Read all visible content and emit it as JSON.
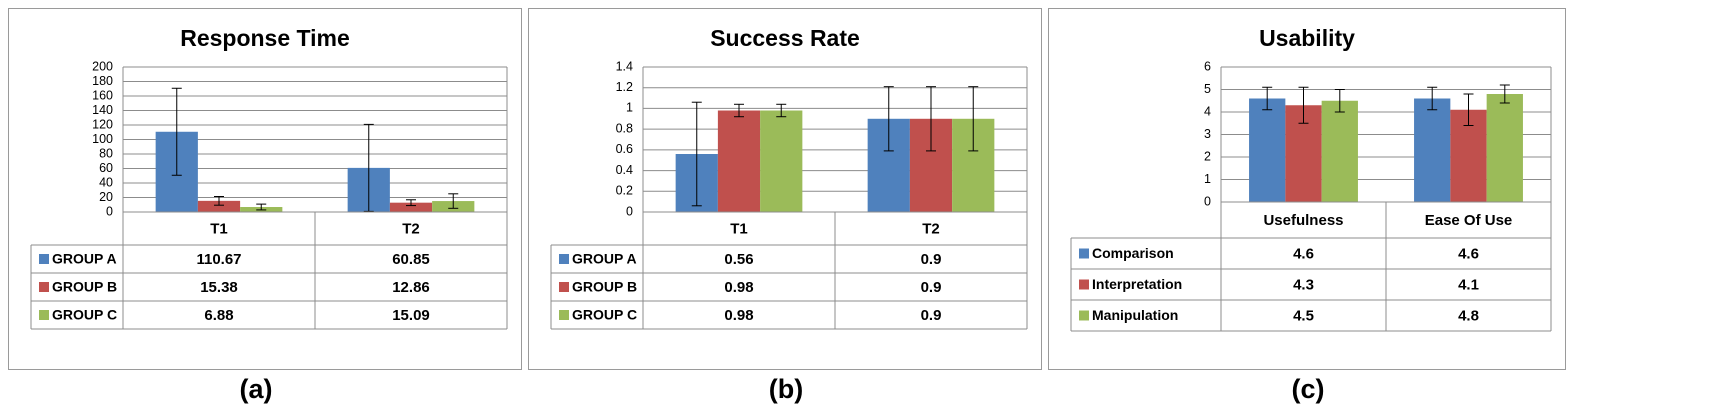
{
  "chart_data": [
    {
      "type": "bar",
      "title": "Response Time",
      "caption": "(a)",
      "categories": [
        "T1",
        "T2"
      ],
      "ylim": [
        0,
        200
      ],
      "yticks": [
        0,
        20,
        40,
        60,
        80,
        100,
        120,
        140,
        160,
        180,
        200
      ],
      "ytick_labels": [
        "0",
        "20",
        "40",
        "60",
        "80",
        "100",
        "120",
        "140",
        "160",
        "180",
        "200"
      ],
      "grid": true,
      "legend": "data-table",
      "series": [
        {
          "name": "GROUP A",
          "color": "#4F81BD",
          "values": [
            110.67,
            60.85
          ],
          "labels": [
            "110.67",
            "60.85"
          ],
          "errors": [
            60,
            60
          ]
        },
        {
          "name": "GROUP B",
          "color": "#C0504D",
          "values": [
            15.38,
            12.86
          ],
          "labels": [
            "15.38",
            "12.86"
          ],
          "errors": [
            6,
            4
          ]
        },
        {
          "name": "GROUP C",
          "color": "#9BBB59",
          "values": [
            6.88,
            15.09
          ],
          "labels": [
            "6.88",
            "15.09"
          ],
          "errors": [
            4,
            10
          ]
        }
      ]
    },
    {
      "type": "bar",
      "title": "Success Rate",
      "caption": "(b)",
      "categories": [
        "T1",
        "T2"
      ],
      "ylim": [
        0,
        1.4
      ],
      "yticks": [
        0,
        0.2,
        0.4,
        0.6,
        0.8,
        1.0,
        1.2,
        1.4
      ],
      "ytick_labels": [
        "0",
        "0.2",
        "0.4",
        "0.6",
        "0.8",
        "1",
        "1.2",
        "1.4"
      ],
      "grid": true,
      "legend": "data-table",
      "series": [
        {
          "name": "GROUP A",
          "color": "#4F81BD",
          "values": [
            0.56,
            0.9
          ],
          "labels": [
            "0.56",
            "0.9"
          ],
          "errors": [
            0.5,
            0.31
          ]
        },
        {
          "name": "GROUP B",
          "color": "#C0504D",
          "values": [
            0.98,
            0.9
          ],
          "labels": [
            "0.98",
            "0.9"
          ],
          "errors": [
            0.06,
            0.31
          ]
        },
        {
          "name": "GROUP C",
          "color": "#9BBB59",
          "values": [
            0.98,
            0.9
          ],
          "labels": [
            "0.98",
            "0.9"
          ],
          "errors": [
            0.06,
            0.31
          ]
        }
      ]
    },
    {
      "type": "bar",
      "title": "Usability",
      "caption": "(c)",
      "categories": [
        "Usefulness",
        "Ease Of Use"
      ],
      "ylim": [
        0,
        6
      ],
      "yticks": [
        0,
        1,
        2,
        3,
        4,
        5,
        6
      ],
      "ytick_labels": [
        "0",
        "1",
        "2",
        "3",
        "4",
        "5",
        "6"
      ],
      "grid": true,
      "legend": "data-table",
      "series": [
        {
          "name": "Comparison",
          "color": "#4F81BD",
          "values": [
            4.6,
            4.6
          ],
          "labels": [
            "4.6",
            "4.6"
          ],
          "errors": [
            0.5,
            0.5
          ]
        },
        {
          "name": "Interpretation",
          "color": "#C0504D",
          "values": [
            4.3,
            4.1
          ],
          "labels": [
            "4.3",
            "4.1"
          ],
          "errors": [
            0.8,
            0.7
          ]
        },
        {
          "name": "Manipulation",
          "color": "#9BBB59",
          "values": [
            4.5,
            4.8
          ],
          "labels": [
            "4.5",
            "4.8"
          ],
          "errors": [
            0.5,
            0.4
          ]
        }
      ]
    }
  ]
}
